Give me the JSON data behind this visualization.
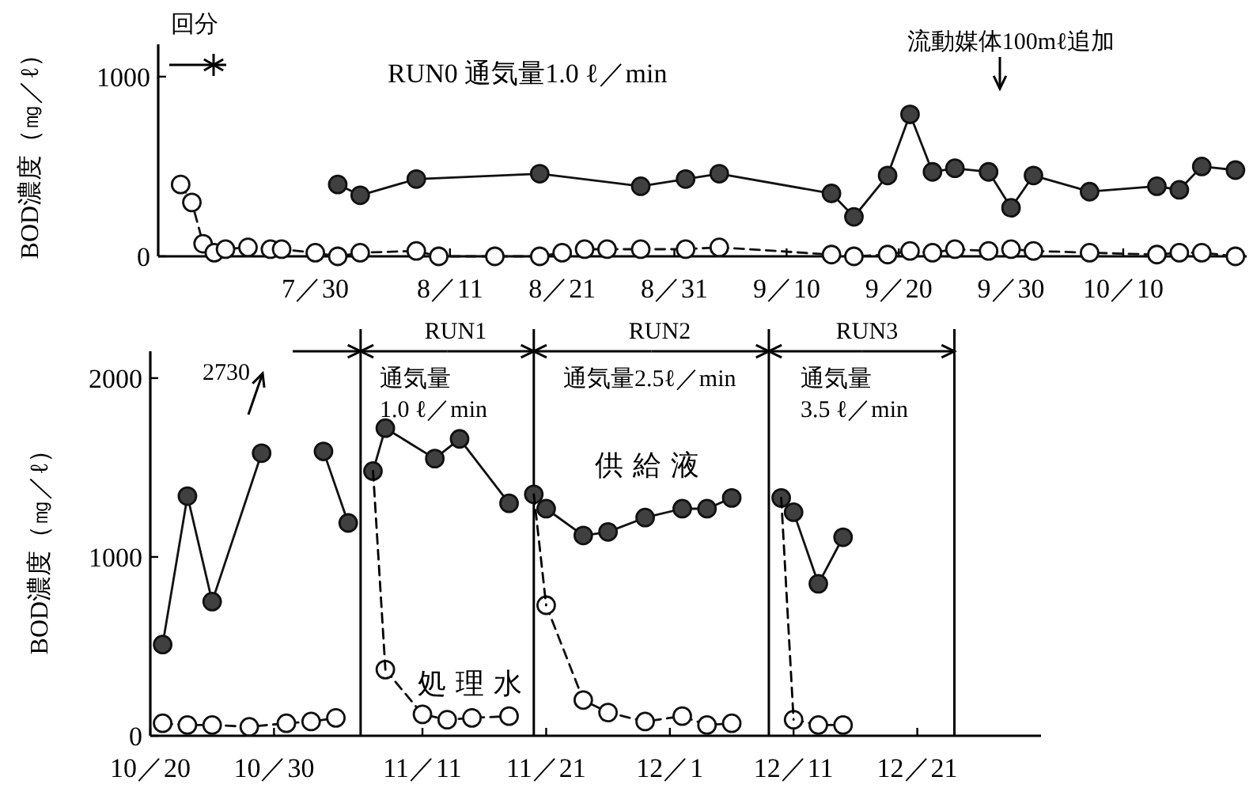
{
  "chart_data": [
    {
      "type": "line",
      "title": "RUN0 通気量1.0 ℓ／min",
      "ylabel": "BOD濃度（㎎／ℓ）",
      "xlim": [
        "--07-16",
        "--10-21"
      ],
      "ylim": [
        0,
        1180
      ],
      "yticks": [
        0,
        1000
      ],
      "xticks": [
        {
          "value": "--07-30",
          "label": "7／30"
        },
        {
          "value": "--08-11",
          "label": "8／11"
        },
        {
          "value": "--08-21",
          "label": "8／21"
        },
        {
          "value": "--08-31",
          "label": "8／31"
        },
        {
          "value": "--09-10",
          "label": "9／10"
        },
        {
          "value": "--09-20",
          "label": "9／20"
        },
        {
          "value": "--09-30",
          "label": "9／30"
        },
        {
          "value": "--10-10",
          "label": "10／10"
        }
      ],
      "series": [
        {
          "color": "#404040",
          "marker": "circle",
          "line_style": "solid",
          "x": [
            "--08-01",
            "--08-03",
            "--08-08",
            "--08-19",
            "--08-28",
            "--09-01",
            "--09-04",
            "--09-14",
            "--09-16",
            "--09-19",
            "--09-21",
            "--09-23",
            "--09-25",
            "--09-28",
            "--09-30",
            "--10-02",
            "--10-07",
            "--10-13",
            "--10-15",
            "--10-17",
            "--10-20"
          ],
          "values": [
            400,
            340,
            430,
            460,
            390,
            430,
            460,
            350,
            220,
            450,
            790,
            470,
            490,
            470,
            270,
            450,
            360,
            390,
            370,
            500,
            480
          ]
        },
        {
          "color": "#ffffff",
          "marker": "circle",
          "line_style": "dashed",
          "x": [
            "--07-18",
            "--07-19",
            "--07-20",
            "--07-21",
            "--07-22",
            "--07-24",
            "--07-26",
            "--07-27",
            "--07-30",
            "--08-01",
            "--08-03",
            "--08-08",
            "--08-10",
            "--08-15",
            "--08-19",
            "--08-21",
            "--08-23",
            "--08-25",
            "--08-28",
            "--09-01",
            "--09-04",
            "--09-14",
            "--09-16",
            "--09-19",
            "--09-21",
            "--09-23",
            "--09-25",
            "--09-28",
            "--09-30",
            "--10-02",
            "--10-07",
            "--10-13",
            "--10-15",
            "--10-17",
            "--10-20"
          ],
          "values": [
            400,
            300,
            70,
            20,
            40,
            50,
            40,
            40,
            20,
            0,
            20,
            30,
            0,
            0,
            0,
            20,
            40,
            40,
            40,
            40,
            50,
            10,
            0,
            10,
            30,
            20,
            40,
            30,
            40,
            30,
            20,
            10,
            20,
            20,
            0
          ]
        }
      ],
      "annotations": [
        "回分",
        "流動媒体100mℓ追加"
      ]
    },
    {
      "type": "line",
      "ylabel": "BOD濃度（㎎／ℓ）",
      "xlim": [
        "--10-20",
        "--12-31"
      ],
      "ylim": [
        0,
        2150
      ],
      "yticks": [
        0,
        1000,
        2000
      ],
      "xticks": [
        {
          "value": "--10-20",
          "label": "10／20"
        },
        {
          "value": "--10-30",
          "label": "10／30"
        },
        {
          "value": "--11-11",
          "label": "11／11"
        },
        {
          "value": "--11-21",
          "label": "11／21"
        },
        {
          "value": "--12-01",
          "label": "12／1"
        },
        {
          "value": "--12-11",
          "label": "12／11"
        },
        {
          "value": "--12-21",
          "label": "12／21"
        }
      ],
      "series": [
        {
          "name": "供給液",
          "color": "#404040",
          "marker": "circle",
          "line_style": "solid",
          "x": [
            "--10-21",
            "--10-23",
            "--10-25",
            "--10-29",
            "--11-01",
            "--11-03",
            "--11-05",
            "--11-06",
            "--11-07",
            "--11-08",
            "--11-12",
            "--11-14",
            "--11-18",
            "--11-19",
            "--11-20",
            "--11-21",
            "--11-24",
            "--11-26",
            "--11-29",
            "--12-02",
            "--12-04",
            "--12-06",
            "--12-08",
            "--12-10",
            "--12-11",
            "--12-13",
            "--12-15"
          ],
          "values": [
            510,
            1340,
            750,
            1580,
            null,
            1590,
            1190,
            null,
            1480,
            1720,
            1550,
            1660,
            1300,
            null,
            1350,
            1270,
            1120,
            1140,
            1220,
            1270,
            1270,
            1330,
            null,
            1330,
            1250,
            850,
            1110
          ]
        },
        {
          "name": "処理水",
          "color": "#ffffff",
          "marker": "circle",
          "line_style": "dashed",
          "x": [
            "--10-21",
            "--10-23",
            "--10-25",
            "--10-28",
            "--10-31",
            "--11-02",
            "--11-04",
            "--11-06",
            "--11-08",
            "--11-11",
            "--11-13",
            "--11-15",
            "--11-18",
            "--11-20",
            "--11-21",
            "--11-24",
            "--11-26",
            "--11-29",
            "--12-02",
            "--12-04",
            "--12-06",
            "--12-08",
            "--12-11",
            "--12-13",
            "--12-15"
          ],
          "values": [
            70,
            60,
            60,
            50,
            70,
            80,
            100,
            null,
            370,
            120,
            90,
            100,
            110,
            null,
            730,
            200,
            130,
            80,
            110,
            60,
            70,
            null,
            90,
            60,
            60
          ]
        },
        {
          "color": "#000000",
          "marker": "none",
          "line_style": "dashed",
          "x": [
            "--11-07",
            "--11-08"
          ],
          "values": [
            1480,
            370
          ]
        },
        {
          "color": "#000000",
          "marker": "none",
          "line_style": "dashed",
          "x": [
            "--11-20",
            "--11-21"
          ],
          "values": [
            1350,
            730
          ]
        },
        {
          "color": "#000000",
          "marker": "none",
          "line_style": "dashed",
          "x": [
            "--12-10",
            "--12-11"
          ],
          "values": [
            1330,
            90
          ]
        }
      ],
      "ref_lines": [
        {
          "axis": "x",
          "value": "--11-06"
        },
        {
          "axis": "x",
          "value": "--11-20"
        },
        {
          "axis": "x",
          "value": "--12-09"
        },
        {
          "axis": "x",
          "value": "--12-24"
        }
      ],
      "annotations": [
        "2730",
        "通気量\n1.0 ℓ／min",
        "通気量2.5ℓ／min",
        "通気量\n3.5 ℓ／min",
        "RUN1",
        "RUN2",
        "RUN3"
      ]
    }
  ]
}
